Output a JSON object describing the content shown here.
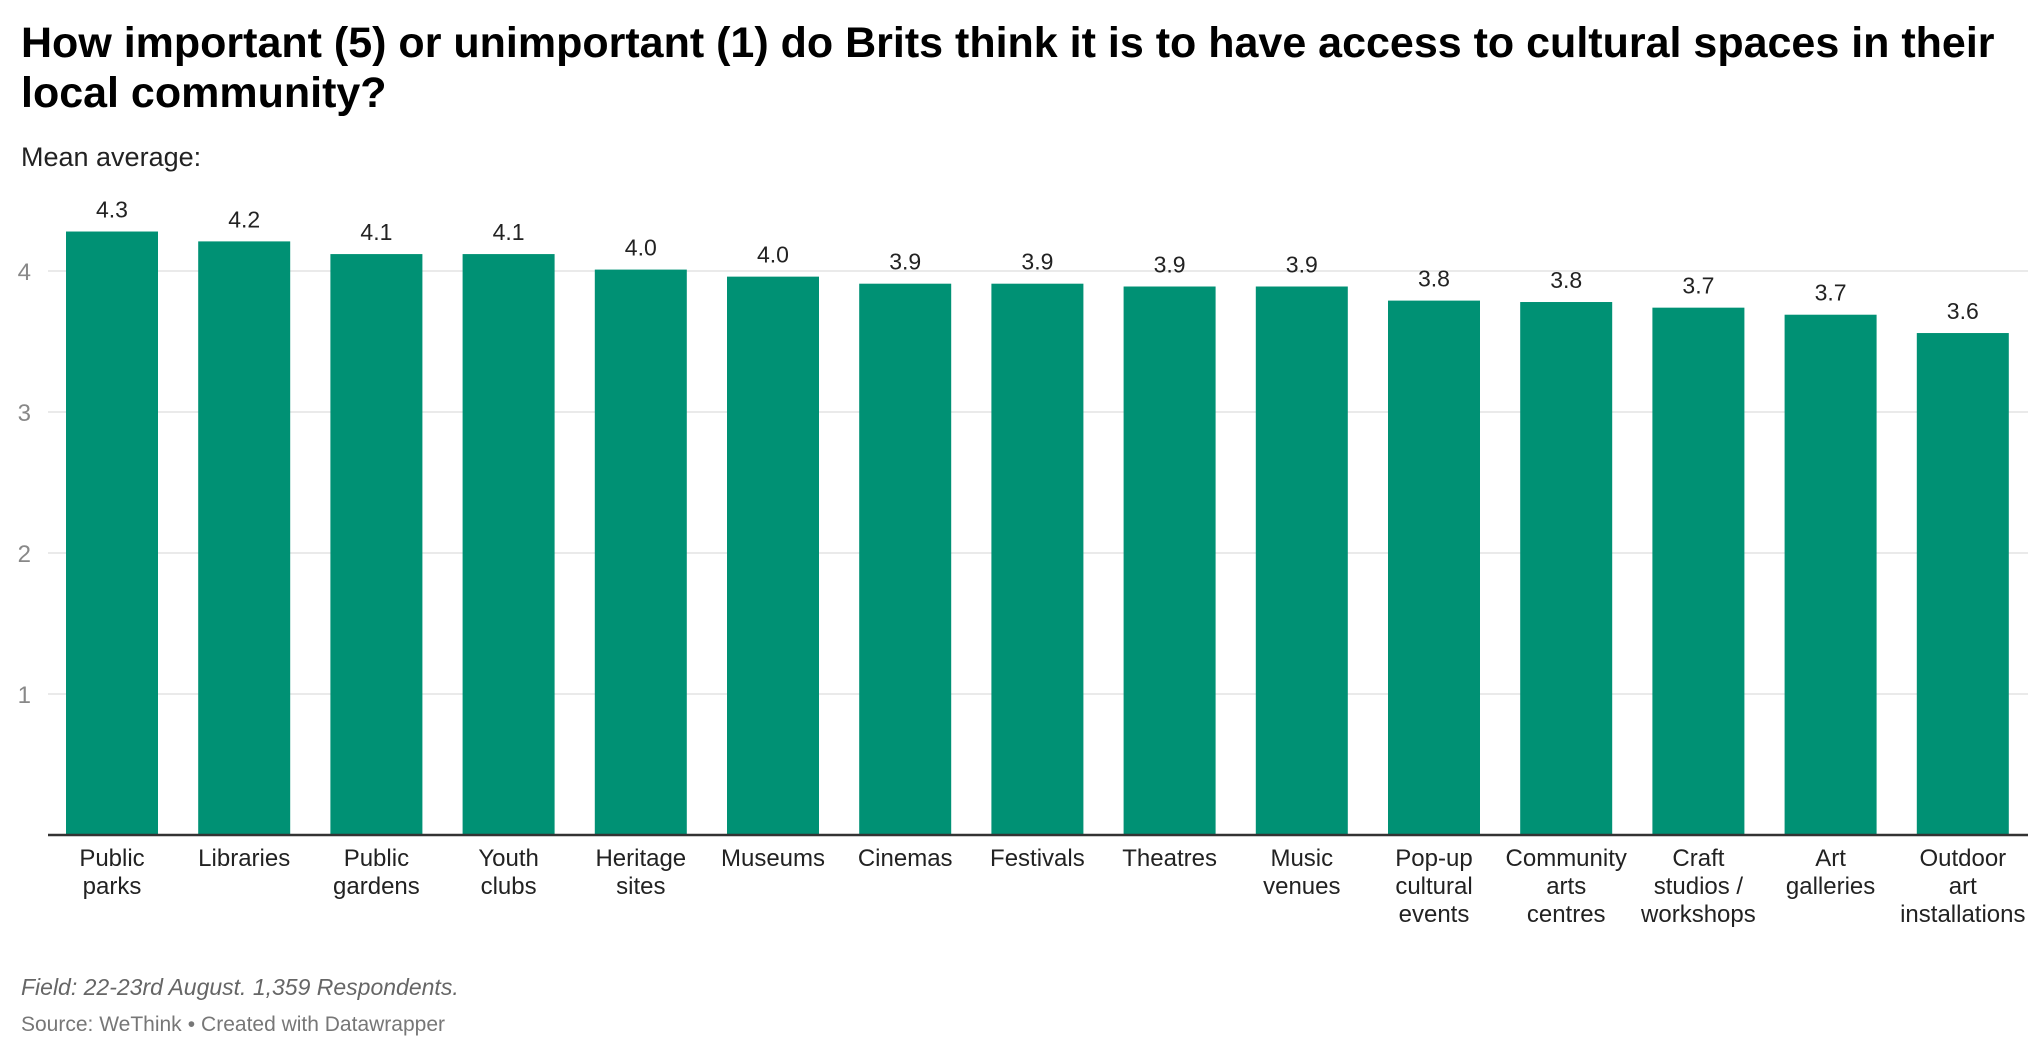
{
  "header": {
    "title": "How important (5) or unimportant (1) do Brits think it is to have access to cultural spaces in their local community?",
    "subtitle": "Mean average:"
  },
  "footer": {
    "note": "Field: 22-23rd August. 1,359 Respondents.",
    "source_label": "Source: WeThink",
    "separator": "•",
    "credit": "Created with Datawrapper"
  },
  "colors": {
    "bar": "#009174",
    "grid": "#e3e3e3",
    "axis": "#333333",
    "tick_text": "#888888",
    "label_text": "#222222"
  },
  "chart_data": {
    "type": "bar",
    "title": "How important (5) or unimportant (1) do Brits think it is to have access to cultural spaces in their local community?",
    "subtitle": "Mean average:",
    "ylabel": "",
    "xlabel": "",
    "ylim": [
      0,
      4.3
    ],
    "yticks": [
      1,
      2,
      3,
      4
    ],
    "grid": true,
    "legend": "none",
    "categories": [
      [
        "Public",
        "parks"
      ],
      [
        "Libraries"
      ],
      [
        "Public",
        "gardens"
      ],
      [
        "Youth",
        "clubs"
      ],
      [
        "Heritage",
        "sites"
      ],
      [
        "Museums"
      ],
      [
        "Cinemas"
      ],
      [
        "Festivals"
      ],
      [
        "Theatres"
      ],
      [
        "Music",
        "venues"
      ],
      [
        "Pop-up",
        "cultural",
        "events"
      ],
      [
        "Community",
        "arts",
        "centres"
      ],
      [
        "Craft",
        "studios /",
        "workshops"
      ],
      [
        "Art",
        "galleries"
      ],
      [
        "Outdoor",
        "art",
        "installations"
      ]
    ],
    "values": [
      4.28,
      4.21,
      4.12,
      4.12,
      4.01,
      3.96,
      3.91,
      3.91,
      3.89,
      3.89,
      3.79,
      3.78,
      3.74,
      3.69,
      3.56
    ],
    "value_labels": [
      "4.3",
      "4.2",
      "4.1",
      "4.1",
      "4.0",
      "4.0",
      "3.9",
      "3.9",
      "3.9",
      "3.9",
      "3.8",
      "3.8",
      "3.7",
      "3.7",
      "3.6"
    ]
  }
}
